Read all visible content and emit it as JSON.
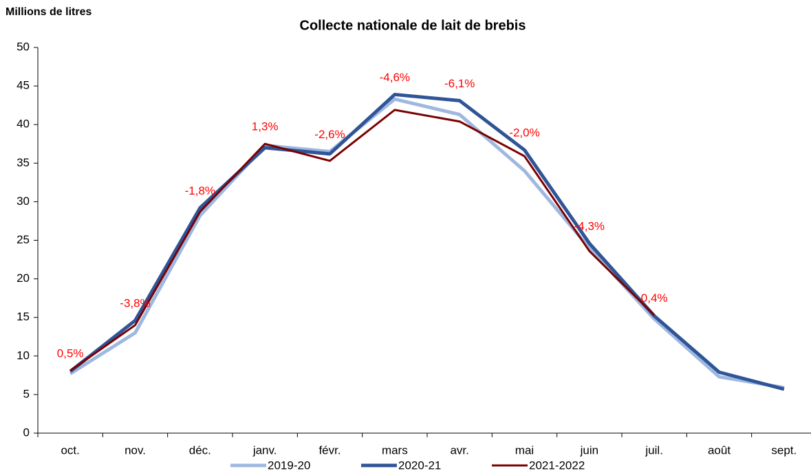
{
  "chart_data": {
    "type": "line",
    "title": "Collecte nationale de lait de brebis",
    "y_label": "Millions de litres",
    "categories": [
      "oct.",
      "nov.",
      "déc.",
      "janv.",
      "févr.",
      "mars",
      "avr.",
      "mai",
      "juin",
      "juil.",
      "août",
      "sept."
    ],
    "series": [
      {
        "name": "2019-20",
        "color": "#9fb8e0",
        "values": [
          7.7,
          13.0,
          28.2,
          37.3,
          36.5,
          43.3,
          41.3,
          34.0,
          24.0,
          14.8,
          7.3,
          5.9
        ]
      },
      {
        "name": "2020-21",
        "color": "#2f5597",
        "values": [
          8.0,
          14.6,
          29.2,
          37.0,
          36.2,
          43.9,
          43.1,
          36.7,
          24.6,
          15.2,
          7.9,
          5.7
        ]
      },
      {
        "name": "2021-2022",
        "color": "#7b0000",
        "values": [
          8.1,
          14.0,
          28.7,
          37.5,
          35.3,
          41.9,
          40.4,
          35.9,
          23.6,
          15.3,
          null,
          null
        ]
      }
    ],
    "annotations": [
      "0,5%",
      "-3,8%",
      "-1,8%",
      "1,3%",
      "-2,6%",
      "-4,6%",
      "-6,1%",
      "-2,0%",
      "-4,3%",
      "0,4%",
      null,
      null
    ],
    "ylim": [
      0,
      50
    ],
    "yticks": [
      0,
      5,
      10,
      15,
      20,
      25,
      30,
      35,
      40,
      45,
      50
    ],
    "grid": false,
    "legend": "bottom"
  }
}
